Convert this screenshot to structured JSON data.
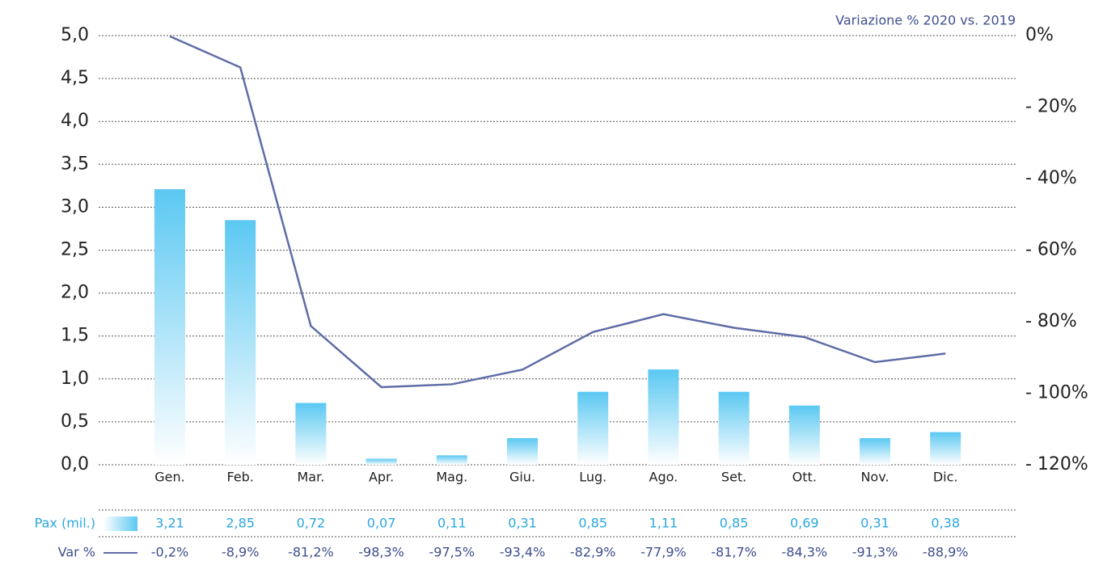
{
  "chart_data": {
    "type": "bar",
    "y2_label": "Variazione % 2020 vs. 2019",
    "categories": [
      "Gen.",
      "Feb.",
      "Mar.",
      "Apr.",
      "Mag.",
      "Giu.",
      "Lug.",
      "Ago.",
      "Set.",
      "Ott.",
      "Nov.",
      "Dic."
    ],
    "series": [
      {
        "name": "Pax (mil.)",
        "type": "bar",
        "color": "#5bc8f2",
        "label_color": "#29a8e0",
        "values": [
          3.21,
          2.85,
          0.72,
          0.07,
          0.11,
          0.31,
          0.85,
          1.11,
          0.85,
          0.69,
          0.31,
          0.38
        ],
        "value_labels": [
          "3,21",
          "2,85",
          "0,72",
          "0,07",
          "0,11",
          "0,31",
          "0,85",
          "1,11",
          "0,85",
          "0,69",
          "0,31",
          "0,38"
        ]
      },
      {
        "name": "Var %",
        "type": "line",
        "axis": "y2",
        "color": "#5e6da6",
        "label_color": "#3f4f8f",
        "values": [
          -0.2,
          -8.9,
          -81.2,
          -98.3,
          -97.5,
          -93.4,
          -82.9,
          -77.9,
          -81.7,
          -84.3,
          -91.3,
          -88.9
        ],
        "value_labels": [
          "-0,2%",
          "-8,9%",
          "-81,2%",
          "-98,3%",
          "-97,5%",
          "-93,4%",
          "-82,9%",
          "-77,9%",
          "-81,7%",
          "-84,3%",
          "-91,3%",
          "-88,9%"
        ]
      }
    ],
    "ylim": [
      0,
      5
    ],
    "yticks": [
      {
        "value": 0,
        "label": "0,0"
      },
      {
        "value": 0.5,
        "label": "0,5"
      },
      {
        "value": 1,
        "label": "1,0"
      },
      {
        "value": 1.5,
        "label": "1,5"
      },
      {
        "value": 2,
        "label": "2,0"
      },
      {
        "value": 2.5,
        "label": "2,5"
      },
      {
        "value": 3,
        "label": "3,0"
      },
      {
        "value": 3.5,
        "label": "3,5"
      },
      {
        "value": 4,
        "label": "4,0"
      },
      {
        "value": 4.5,
        "label": "4,5"
      },
      {
        "value": 5,
        "label": "5,0"
      }
    ],
    "y2lim": [
      -120,
      0
    ],
    "y2ticks": [
      {
        "value": 0,
        "label": "0%"
      },
      {
        "value": -20,
        "label": "- 20%"
      },
      {
        "value": -40,
        "label": "- 40%"
      },
      {
        "value": -60,
        "label": "- 60%"
      },
      {
        "value": -80,
        "label": "- 80%"
      },
      {
        "value": -100,
        "label": "- 100%"
      },
      {
        "value": -120,
        "label": "- 120%"
      }
    ],
    "grid": true
  }
}
